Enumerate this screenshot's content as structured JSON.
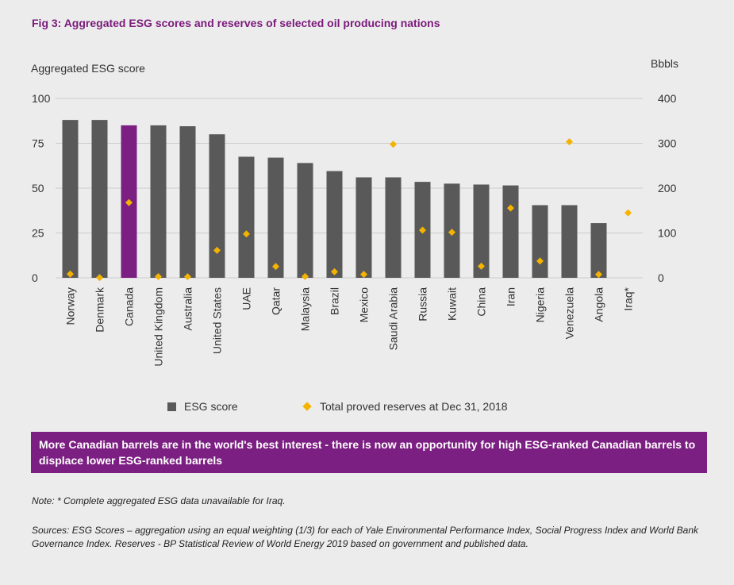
{
  "figure": {
    "title": "Fig 3: Aggregated ESG scores and reserves of selected oil producing nations",
    "left_axis_title": "Aggregated ESG score",
    "right_axis_title": "Bbbls"
  },
  "legend": {
    "bar_label": "ESG score",
    "diamond_label": "Total proved reserves at Dec 31, 2018"
  },
  "callout": {
    "text": "More Canadian barrels are in the world's best interest - there is now an opportunity for high ESG-ranked Canadian barrels to displace lower ESG-ranked barrels"
  },
  "note": "Note: * Complete aggregated ESG data unavailable for Iraq.",
  "sources": "Sources: ESG Scores – aggregation using an equal weighting (1/3) for each of Yale Environmental Performance Index, Social Progress Index and World Bank Governance Index. Reserves - BP Statistical Review of World Energy 2019 based on government and published data.",
  "colors": {
    "bar": "#595959",
    "highlight_bar": "#7c1f82",
    "diamond": "#f5b300",
    "title": "#7a1a7a",
    "grid": "#cccccc"
  },
  "chart_data": {
    "type": "bar",
    "categories": [
      "Norway",
      "Denmark",
      "Canada",
      "United Kingdom",
      "Australia",
      "United States",
      "UAE",
      "Qatar",
      "Malaysia",
      "Brazil",
      "Mexico",
      "Saudi Arabia",
      "Russia",
      "Kuwait",
      "China",
      "Iran",
      "Nigeria",
      "Venezuela",
      "Angola",
      "Iraq*"
    ],
    "series": [
      {
        "name": "ESG score",
        "axis": "left",
        "values": [
          88,
          88,
          85,
          85,
          84.5,
          80,
          67.5,
          67,
          64,
          59.5,
          56,
          56,
          53.5,
          52.5,
          52,
          51.5,
          40.5,
          40.5,
          30.5,
          null
        ]
      },
      {
        "name": "Total proved reserves at Dec 31, 2018",
        "axis": "right",
        "values": [
          8.5,
          0.4,
          167.8,
          2.7,
          2.4,
          61.2,
          97.8,
          25.2,
          2.8,
          13.4,
          7.7,
          297.7,
          106.2,
          101.5,
          25.9,
          155.6,
          37.5,
          303.3,
          7.5,
          145
        ]
      }
    ],
    "highlight_category": "Canada",
    "left_axis": {
      "ylim": [
        0,
        100
      ],
      "ticks": [
        "0",
        "25",
        "50",
        "75",
        "100"
      ]
    },
    "right_axis": {
      "ylim": [
        0,
        400
      ],
      "ticks": [
        "0",
        "100",
        "200",
        "300",
        "400"
      ]
    },
    "grid": true,
    "legend_position": "bottom"
  }
}
